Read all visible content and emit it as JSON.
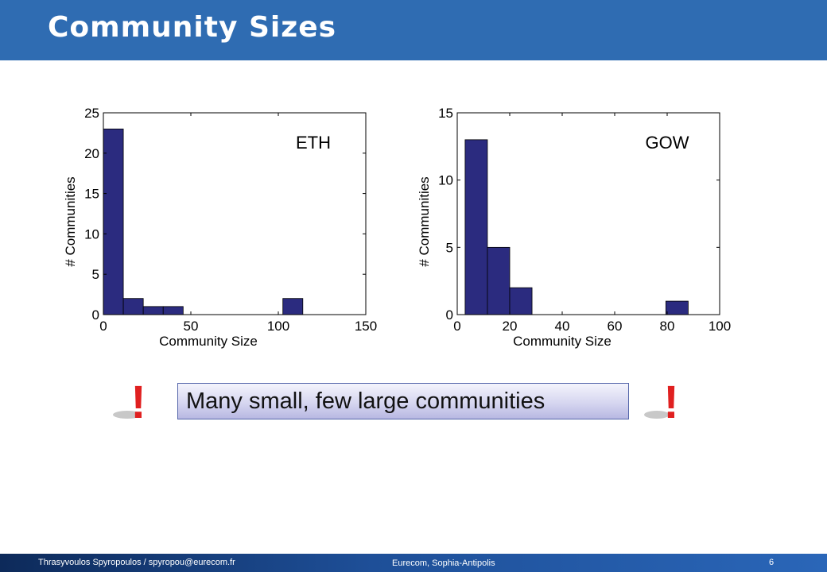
{
  "slide": {
    "title": "Community Sizes",
    "callout": "Many small, few large communities",
    "exclamation": "!"
  },
  "footer": {
    "author": "Thrasyvoulos Spyropoulos / spyropou@eurecom.fr",
    "institution": "Eurecom, Sophia-Antipolis",
    "page": "6"
  },
  "colors": {
    "header": "#2f6cb2",
    "bar": "#2b2b7f",
    "exclamation": "#e02020"
  },
  "chart_data": [
    {
      "type": "bar",
      "annotation": "ETH",
      "xlabel": "Community Size",
      "ylabel": "# Communities",
      "xlim": [
        0,
        150
      ],
      "ylim": [
        0,
        25
      ],
      "xticks": [
        0,
        50,
        100,
        150
      ],
      "yticks": [
        0,
        5,
        10,
        15,
        20,
        25
      ],
      "grid": false,
      "bins": [
        {
          "x0": 0,
          "x1": 11.4,
          "value": 23
        },
        {
          "x0": 11.4,
          "x1": 22.8,
          "value": 2
        },
        {
          "x0": 22.8,
          "x1": 34.2,
          "value": 1
        },
        {
          "x0": 34.2,
          "x1": 45.6,
          "value": 1
        },
        {
          "x0": 102.6,
          "x1": 114,
          "value": 2
        }
      ]
    },
    {
      "type": "bar",
      "annotation": "GOW",
      "xlabel": "Community Size",
      "ylabel": "# Communities",
      "xlim": [
        0,
        100
      ],
      "ylim": [
        0,
        15
      ],
      "xticks": [
        0,
        20,
        40,
        60,
        80,
        100
      ],
      "yticks": [
        0,
        5,
        10,
        15
      ],
      "grid": false,
      "bins": [
        {
          "x0": 3,
          "x1": 11.5,
          "value": 13
        },
        {
          "x0": 11.5,
          "x1": 20,
          "value": 5
        },
        {
          "x0": 20,
          "x1": 28.5,
          "value": 2
        },
        {
          "x0": 79.5,
          "x1": 88,
          "value": 1
        }
      ]
    }
  ]
}
